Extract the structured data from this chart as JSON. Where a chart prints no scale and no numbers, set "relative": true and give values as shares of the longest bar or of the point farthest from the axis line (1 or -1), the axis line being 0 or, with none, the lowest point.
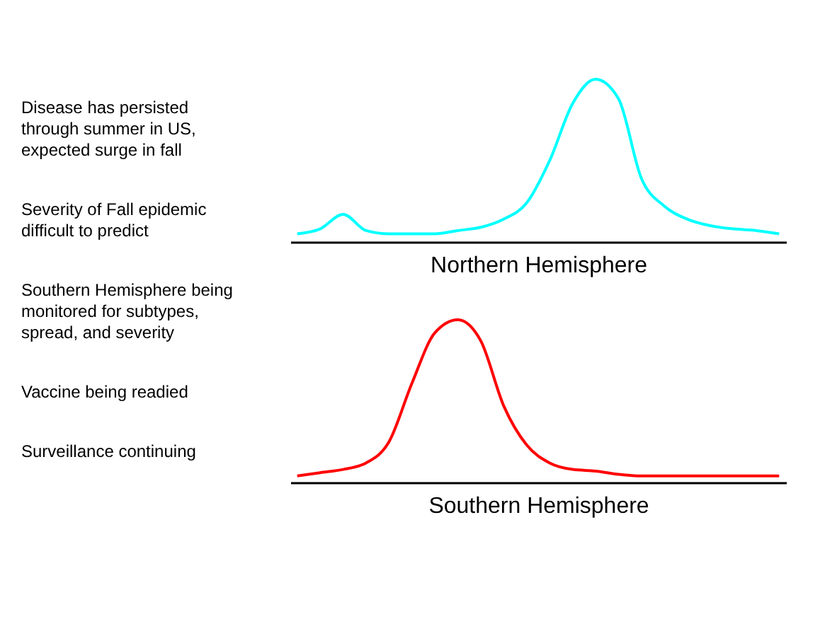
{
  "chart_data": [
    {
      "type": "other",
      "annotations": [
        "Disease has persisted through summer in US, expected surge in fall",
        "Severity of Fall epidemic difficult to predict",
        "Southern Hemisphere being monitored for subtypes, spread, and severity",
        "Vaccine being readied",
        "Surveillance continuing"
      ]
    },
    {
      "type": "line",
      "relative": true,
      "xlabel": "Northern Hemisphere",
      "categories": [
        null,
        null,
        null,
        null,
        null,
        null,
        null,
        null,
        null,
        null,
        null,
        null,
        null,
        null,
        null,
        null,
        null,
        null,
        null,
        null,
        null,
        null
      ],
      "series": [
        {
          "color": "#00ffff",
          "values": [
            0.05,
            0.08,
            0.17,
            0.07,
            0.05,
            0.05,
            0.05,
            0.07,
            0.09,
            0.14,
            0.24,
            0.5,
            0.85,
            1.0,
            0.88,
            0.39,
            0.22,
            0.14,
            0.1,
            0.08,
            0.07,
            0.05
          ]
        }
      ],
      "grid": false,
      "legend": false,
      "tick_labels": false
    },
    {
      "type": "line",
      "relative": true,
      "xlabel": "Southern Hemisphere",
      "categories": [
        null,
        null,
        null,
        null,
        null,
        null,
        null,
        null,
        null,
        null,
        null,
        null,
        null,
        null,
        null,
        null,
        null,
        null,
        null,
        null,
        null,
        null
      ],
      "series": [
        {
          "color": "#ff0000",
          "values": [
            0.04,
            0.06,
            0.08,
            0.12,
            0.25,
            0.61,
            0.92,
            1.0,
            0.87,
            0.47,
            0.23,
            0.12,
            0.08,
            0.07,
            0.05,
            0.04,
            0.04,
            0.04,
            0.04,
            0.04,
            0.04,
            0.04
          ]
        }
      ],
      "grid": false,
      "legend": false,
      "tick_labels": false
    }
  ]
}
